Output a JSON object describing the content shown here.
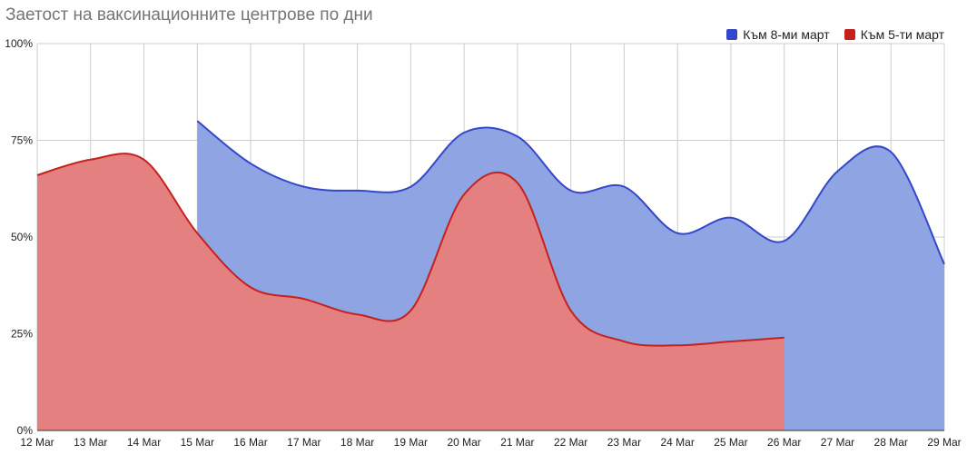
{
  "title": "Заетост на ваксинационните центрове по дни",
  "chart_data": {
    "type": "area",
    "categories": [
      "12 Mar",
      "13 Mar",
      "14 Mar",
      "15 Mar",
      "16 Mar",
      "17 Mar",
      "18 Mar",
      "19 Mar",
      "20 Mar",
      "21 Mar",
      "22 Mar",
      "23 Mar",
      "24 Mar",
      "25 Mar",
      "26 Mar",
      "27 Mar",
      "28 Mar",
      "29 Mar"
    ],
    "series": [
      {
        "name": "Към 8-ми март",
        "color": "#3547c8",
        "fill": "#8ea4e3",
        "values": [
          null,
          null,
          null,
          80,
          69,
          63,
          62,
          63,
          77,
          76,
          62,
          63,
          51,
          55,
          49,
          67,
          72,
          43
        ]
      },
      {
        "name": "Към 5-ти март",
        "color": "#c5211d",
        "fill": "#e58080",
        "values": [
          66,
          70,
          70,
          51,
          37,
          34,
          30,
          31,
          61,
          64,
          31,
          23,
          22,
          23,
          24,
          null,
          null,
          null
        ]
      }
    ],
    "yticks": [
      "0%",
      "25%",
      "50%",
      "75%",
      "100%"
    ],
    "ylim": [
      0,
      100
    ],
    "grid": true,
    "legend_position": "top-right"
  }
}
